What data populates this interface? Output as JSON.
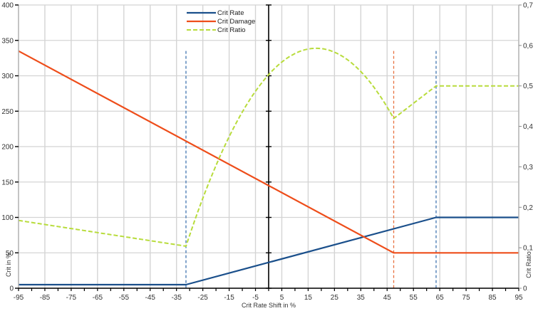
{
  "chart_data": {
    "type": "line",
    "title": "",
    "xlabel": "Crit Rate Shift in %",
    "ylabel": "Crit in %",
    "y2label": "Crit Ratio",
    "xlim": [
      -95,
      95
    ],
    "ylim": [
      0,
      400
    ],
    "y2lim": [
      0,
      0.7
    ],
    "grid": true,
    "legend_position": "top-center",
    "x_ticks": [
      -95,
      -85,
      -75,
      -65,
      -55,
      -45,
      -35,
      -25,
      -15,
      -5,
      5,
      15,
      25,
      35,
      45,
      55,
      65,
      75,
      85,
      95
    ],
    "x_tick_labels": [
      "-95",
      "-85",
      "-75",
      "-65",
      "-55",
      "-45",
      "-35",
      "-25",
      "-15",
      "-5",
      "5",
      "15",
      "25",
      "35",
      "45",
      "55",
      "65",
      "75",
      "85",
      "95"
    ],
    "y_ticks": [
      0,
      50,
      100,
      150,
      200,
      250,
      300,
      350,
      400
    ],
    "y_tick_labels": [
      "0",
      "50",
      "100",
      "150",
      "200",
      "250",
      "300",
      "350",
      "400"
    ],
    "y2_ticks": [
      0,
      0.1,
      0.2,
      0.3,
      0.4,
      0.5,
      0.6,
      0.7
    ],
    "y2_tick_labels": [
      "0",
      "0,1",
      "0,2",
      "0,3",
      "0,4",
      "0,5",
      "0,6",
      "0,7"
    ],
    "series": [
      {
        "name": "Crit Rate",
        "axis": "left",
        "color": "#1a4f8b",
        "style": "solid",
        "x": [
          -95,
          -31.4,
          63.6,
          95
        ],
        "values": [
          5,
          5,
          100,
          100
        ]
      },
      {
        "name": "Crit Damage",
        "axis": "left",
        "color": "#ee4d1a",
        "style": "solid",
        "x": [
          -95,
          47.5,
          95
        ],
        "values": [
          335,
          50,
          50
        ]
      },
      {
        "name": "Crit Ratio",
        "axis": "right",
        "color": "#b8dc3c",
        "style": "dashed",
        "x": [
          -95,
          -31.4,
          -25,
          -15,
          -5,
          0,
          5,
          10,
          18,
          25,
          35,
          47.5,
          63.6,
          95
        ],
        "values": [
          0.1675,
          0.1039,
          0.2108,
          0.3562,
          0.4724,
          0.5221,
          0.5576,
          0.5855,
          0.5929,
          0.5862,
          0.5542,
          0.4195,
          0.5,
          0.5
        ]
      }
    ],
    "annotations": [
      {
        "type": "vline",
        "x": -31.4,
        "color": "#3f74b0",
        "style": "dashed",
        "from": 0,
        "to": 335
      },
      {
        "type": "vline",
        "x": 47.5,
        "color": "#e8703f",
        "style": "dashed",
        "from": 0,
        "to": 335
      },
      {
        "type": "vline",
        "x": 63.6,
        "color": "#3f74b0",
        "style": "dashed",
        "from": 0,
        "to": 335
      },
      {
        "type": "vline",
        "x": 0,
        "color": "#000000",
        "style": "solid",
        "from": 0,
        "to": 400
      }
    ]
  },
  "legend": {
    "items": [
      {
        "label": "Crit Rate",
        "color": "#1a4f8b",
        "style": "solid"
      },
      {
        "label": "Crit Damage",
        "color": "#ee4d1a",
        "style": "solid"
      },
      {
        "label": "Crit Ratio",
        "color": "#b8dc3c",
        "style": "dashed"
      }
    ]
  },
  "axes": {
    "x_title": "Crit Rate Shift in %",
    "y_title": "Crit in %",
    "y2_title": "Crit Ratio"
  }
}
